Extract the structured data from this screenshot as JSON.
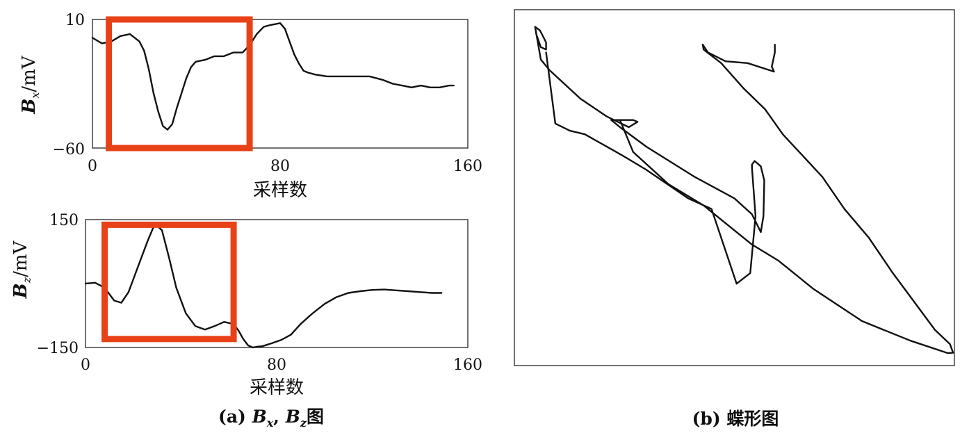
{
  "chart_data": [
    {
      "id": "bx",
      "type": "line",
      "ylabel_symbol": "B",
      "ylabel_sub": "x",
      "ylabel_unit": "/mV",
      "xlabel": "采样数",
      "xlim": [
        0,
        160
      ],
      "ylim": [
        -60,
        10
      ],
      "xticks": [
        "0",
        "80",
        "160"
      ],
      "yticks": [
        "10",
        "−60"
      ],
      "highlight": {
        "x": [
          7,
          67
        ],
        "y": [
          -60,
          10
        ]
      },
      "series": [
        {
          "x": [
            0,
            4,
            8,
            12,
            16,
            20,
            22,
            24,
            26,
            28,
            30,
            32,
            34,
            36,
            38,
            40,
            42,
            44,
            48,
            52,
            56,
            60,
            64,
            67,
            70,
            73,
            76,
            80,
            82,
            84,
            86,
            88,
            90,
            92,
            95,
            100,
            106,
            112,
            118,
            124,
            128,
            132,
            136,
            140,
            144,
            148,
            152,
            154
          ],
          "values": [
            0,
            -3,
            -2,
            1,
            2,
            -2,
            -7,
            -17,
            -30,
            -40,
            -48,
            -50,
            -47,
            -38,
            -30,
            -22,
            -16,
            -13,
            -12,
            -10,
            -10,
            -8,
            -8,
            -4,
            2,
            6,
            7,
            8,
            5,
            -2,
            -9,
            -14,
            -18,
            -19,
            -20,
            -21,
            -21,
            -21,
            -21,
            -23,
            -25,
            -26,
            -27,
            -26,
            -27,
            -27,
            -26,
            -26
          ]
        }
      ]
    },
    {
      "id": "bz",
      "type": "line",
      "ylabel_symbol": "B",
      "ylabel_sub": "z",
      "ylabel_unit": "/mV",
      "xlabel": "采样数",
      "xlim": [
        0,
        160
      ],
      "ylim": [
        -150,
        150
      ],
      "xticks": [
        "0",
        "80",
        "160"
      ],
      "yticks": [
        "150",
        "−150"
      ],
      "highlight": {
        "x": [
          8,
          62
        ],
        "y": [
          -130,
          138
        ]
      },
      "series": [
        {
          "x": [
            0,
            4,
            8,
            12,
            15,
            18,
            22,
            26,
            29,
            32,
            35,
            38,
            42,
            46,
            50,
            54,
            58,
            62,
            64,
            66,
            68,
            70,
            72,
            74,
            78,
            82,
            86,
            90,
            95,
            100,
            105,
            110,
            115,
            120,
            125,
            130,
            135,
            140,
            145,
            149
          ],
          "values": [
            0,
            2,
            -10,
            -40,
            -45,
            -20,
            40,
            100,
            140,
            125,
            60,
            -10,
            -70,
            -100,
            -108,
            -100,
            -90,
            -95,
            -110,
            -130,
            -145,
            -150,
            -148,
            -147,
            -140,
            -132,
            -120,
            -95,
            -70,
            -48,
            -32,
            -22,
            -18,
            -15,
            -14,
            -16,
            -18,
            -20,
            -22,
            -22
          ]
        }
      ]
    },
    {
      "id": "butterfly",
      "type": "line",
      "xlim": [
        0,
        1
      ],
      "ylim": [
        0,
        1
      ],
      "series": [
        {
          "x": [
            0.047,
            0.058,
            0.064,
            0.072,
            0.072,
            0.06,
            0.05,
            0.047,
            0.06,
            0.08,
            0.15,
            0.21,
            0.26,
            0.28,
            0.27,
            0.22,
            0.24,
            0.3,
            0.41,
            0.5,
            0.54,
            0.56,
            0.566,
            0.568,
            0.56,
            0.546,
            0.54,
            0.54,
            0.548,
            0.536,
            0.505,
            0.448,
            0.395,
            0.3,
            0.246,
            0.16,
            0.126,
            0.093,
            0.072
          ],
          "values": [
            0.952,
            0.942,
            0.928,
            0.908,
            0.888,
            0.895,
            0.93,
            0.952,
            0.86,
            0.83,
            0.75,
            0.7,
            0.67,
            0.685,
            0.69,
            0.69,
            0.67,
            0.615,
            0.53,
            0.47,
            0.425,
            0.375,
            0.42,
            0.52,
            0.56,
            0.575,
            0.565,
            0.555,
            0.42,
            0.26,
            0.23,
            0.44,
            0.47,
            0.55,
            0.59,
            0.65,
            0.66,
            0.68,
            0.88
          ]
        },
        {
          "x": [
            0.428,
            0.43,
            0.47,
            0.52,
            0.57,
            0.61,
            0.7,
            0.75,
            0.805,
            0.86,
            0.92,
            0.956,
            0.99,
            0.997,
            0.985,
            0.9,
            0.79,
            0.68,
            0.6,
            0.54,
            0.5,
            0.43,
            0.35,
            0.27,
            0.24
          ],
          "values": [
            0.902,
            0.888,
            0.85,
            0.78,
            0.72,
            0.65,
            0.53,
            0.44,
            0.36,
            0.26,
            0.16,
            0.1,
            0.06,
            0.036,
            0.035,
            0.07,
            0.125,
            0.215,
            0.295,
            0.34,
            0.38,
            0.45,
            0.51,
            0.6,
            0.69
          ]
        },
        {
          "x": [
            0.428,
            0.44,
            0.48,
            0.53,
            0.58,
            0.59,
            0.585,
            0.592,
            0.592
          ],
          "values": [
            0.902,
            0.88,
            0.855,
            0.85,
            0.83,
            0.826,
            0.84,
            0.88,
            0.902
          ]
        }
      ]
    }
  ],
  "captions": {
    "a_prefix": "(a) ",
    "a_sym1": "B",
    "a_sub1": "x",
    "a_sep": ", ",
    "a_sym2": "B",
    "a_sub2": "z",
    "a_suffix": "图",
    "b": "(b) 蝶形图"
  },
  "colors": {
    "line": "#111111",
    "highlight": "#e84118",
    "frame": "#222222"
  }
}
